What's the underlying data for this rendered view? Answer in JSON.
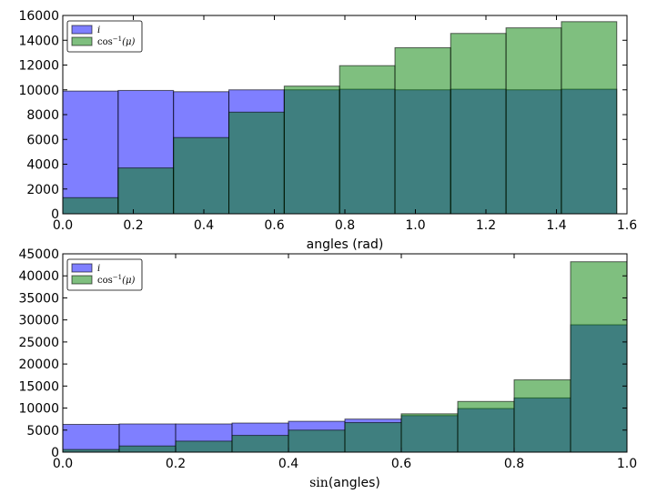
{
  "chart_data": [
    {
      "type": "bar",
      "title": "",
      "xlabel": "angles (rad)",
      "ylabel": "",
      "xlim": [
        0.0,
        1.6
      ],
      "ylim": [
        0,
        16000
      ],
      "xticks": [
        "0.0",
        "0.2",
        "0.4",
        "0.6",
        "0.8",
        "1.0",
        "1.2",
        "1.4",
        "1.6"
      ],
      "yticks": [
        "0",
        "2000",
        "4000",
        "6000",
        "8000",
        "10000",
        "12000",
        "14000",
        "16000"
      ],
      "bin_edges": [
        0.0,
        0.157,
        0.314,
        0.471,
        0.628,
        0.785,
        0.942,
        1.1,
        1.257,
        1.414,
        1.571
      ],
      "series": [
        {
          "name": "i",
          "color": "#0000ff",
          "values": [
            9900,
            9950,
            9850,
            10000,
            10000,
            10050,
            10000,
            10050,
            10000,
            10050
          ]
        },
        {
          "name": "cos-1(μ)",
          "color": "#008000",
          "values": [
            1300,
            3700,
            6150,
            8200,
            10300,
            11950,
            13400,
            14550,
            15000,
            15500
          ]
        }
      ],
      "legend": {
        "position": "top-left",
        "entries": [
          {
            "base": "i",
            "sup": ""
          },
          {
            "base": "cos",
            "sup": "−1",
            "arg": "(μ)"
          }
        ]
      },
      "grid": false
    },
    {
      "type": "bar",
      "title": "",
      "xlabel": "sin(angles)",
      "xlabel_math": "sin",
      "xlabel_rest": "(angles)",
      "ylabel": "",
      "xlim": [
        0.0,
        1.0
      ],
      "ylim": [
        0,
        45000
      ],
      "xticks": [
        "0.0",
        "0.2",
        "0.4",
        "0.6",
        "0.8",
        "1.0"
      ],
      "yticks": [
        "0",
        "5000",
        "10000",
        "15000",
        "20000",
        "25000",
        "30000",
        "35000",
        "40000",
        "45000"
      ],
      "bin_edges": [
        0.0,
        0.1,
        0.2,
        0.3,
        0.4,
        0.5,
        0.6,
        0.7,
        0.8,
        0.9,
        1.0
      ],
      "series": [
        {
          "name": "i",
          "color": "#0000ff",
          "values": [
            6300,
            6400,
            6400,
            6600,
            7000,
            7500,
            8300,
            9900,
            12300,
            28900
          ]
        },
        {
          "name": "cos-1(μ)",
          "color": "#008000",
          "values": [
            600,
            1400,
            2500,
            3800,
            5000,
            6700,
            8700,
            11500,
            16400,
            43200
          ]
        }
      ],
      "legend": {
        "position": "top-left",
        "entries": [
          {
            "base": "i",
            "sup": ""
          },
          {
            "base": "cos",
            "sup": "−1",
            "arg": "(μ)"
          }
        ]
      },
      "grid": false
    }
  ]
}
